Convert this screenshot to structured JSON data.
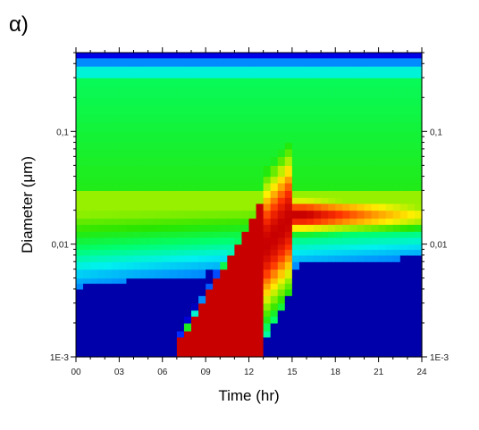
{
  "panel_label": "α)",
  "chart_data": {
    "type": "heatmap",
    "title": "",
    "xlabel": "Time (hr)",
    "ylabel": "Diameter (μm)",
    "x_range": [
      0,
      24
    ],
    "x_ticks": [
      {
        "value": 0,
        "label": "00"
      },
      {
        "value": 3,
        "label": "03"
      },
      {
        "value": 6,
        "label": "06"
      },
      {
        "value": 9,
        "label": "09"
      },
      {
        "value": 12,
        "label": "12"
      },
      {
        "value": 15,
        "label": "15"
      },
      {
        "value": 18,
        "label": "18"
      },
      {
        "value": 21,
        "label": "21"
      },
      {
        "value": 24,
        "label": "24"
      }
    ],
    "y_scale": "log",
    "y_range": [
      0.001,
      0.5
    ],
    "y_ticks": [
      {
        "value": 0.001,
        "label": "1E-3"
      },
      {
        "value": 0.01,
        "label": "0,01"
      },
      {
        "value": 0.1,
        "label": "0,1"
      }
    ],
    "grid": false,
    "colormap": [
      "#00007f",
      "#0000ff",
      "#007fff",
      "#00ffff",
      "#00ff55",
      "#55ff00",
      "#aaff00",
      "#ffff00",
      "#ffaa00",
      "#ff5500",
      "#e00000",
      "#c00000"
    ],
    "x_bins": [
      0,
      0.5,
      1,
      1.5,
      2,
      2.5,
      3,
      3.5,
      4,
      4.5,
      5,
      5.5,
      6,
      6.5,
      7,
      7.5,
      8,
      8.5,
      9,
      9.5,
      10,
      10.5,
      11,
      11.5,
      12,
      12.5,
      13,
      13.5,
      14,
      14.5,
      15,
      15.5,
      16,
      16.5,
      17,
      17.5,
      18,
      18.5,
      19,
      19.5,
      20,
      20.5,
      21,
      21.5,
      22,
      22.5,
      23,
      23.5
    ],
    "y_bins_um": [
      0.001,
      0.00115,
      0.0013,
      0.0015,
      0.0017,
      0.002,
      0.0023,
      0.0026,
      0.003,
      0.0035,
      0.004,
      0.0045,
      0.005,
      0.006,
      0.007,
      0.008,
      0.009,
      0.01,
      0.0115,
      0.013,
      0.015,
      0.017,
      0.02,
      0.023,
      0.026,
      0.03,
      0.035,
      0.04,
      0.05,
      0.06,
      0.07,
      0.08,
      0.1,
      0.12,
      0.14,
      0.17,
      0.2,
      0.25,
      0.3,
      0.38,
      0.45
    ],
    "values_description": "Normalized number concentration (0-1): dark blue background at small diameters, green band at 0.02-0.2 um, nucleation burst from ~7 hr growing to ~0.015-0.02 um by 16-24 hr (red)."
  }
}
